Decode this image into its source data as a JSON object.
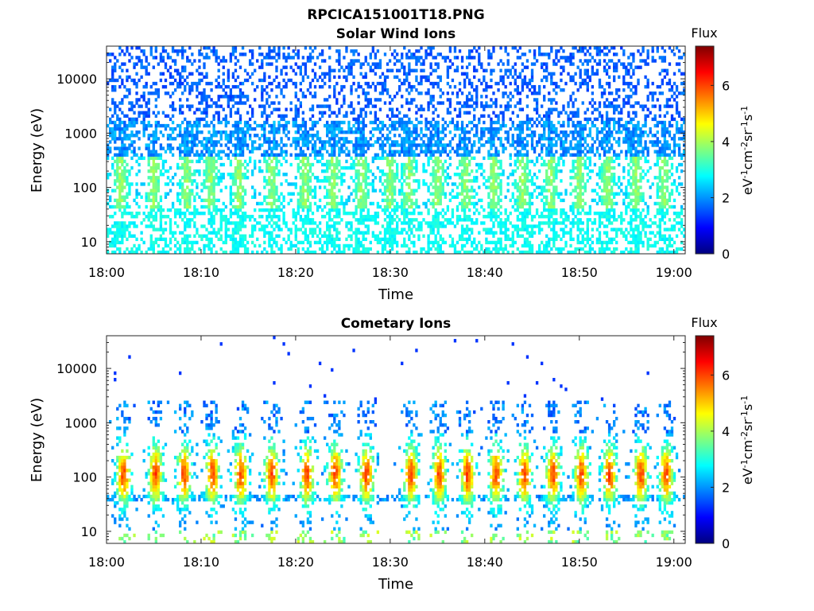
{
  "figure": {
    "title": "RPCICA151001T18.PNG"
  },
  "colors": {
    "jet": [
      "#00007f",
      "#0000ff",
      "#007fff",
      "#00ffff",
      "#7fff7f",
      "#ffff00",
      "#ff7f00",
      "#ff0000",
      "#7f0000"
    ]
  },
  "chart_data": [
    {
      "type": "heatmap",
      "title": "Solar Wind Ions",
      "xlabel": "Time",
      "ylabel": "Energy (eV)",
      "x_ticks": [
        "18:00",
        "18:10",
        "18:20",
        "18:30",
        "18:40",
        "18:50",
        "19:00"
      ],
      "x_tick_minutes": [
        0,
        10,
        20,
        30,
        40,
        50,
        60
      ],
      "xlim_minutes": [
        0,
        61.2
      ],
      "y_ticks": [
        "10",
        "100",
        "1000",
        "10000"
      ],
      "y_tick_values": [
        10,
        100,
        1000,
        10000
      ],
      "ylim": [
        6,
        40000
      ],
      "yscale": "log",
      "colorbar": {
        "title": "Flux",
        "label": "eV-1cm-2sr-1s-1",
        "ticks": [
          "0",
          "2",
          "4",
          "6"
        ],
        "tick_values": [
          0,
          2,
          4,
          6
        ],
        "range": [
          0,
          7.4
        ]
      },
      "profile": "solar",
      "bursts_minutes": [
        1.5,
        5,
        8.5,
        11,
        14,
        17.5,
        21,
        24,
        27,
        30,
        32,
        35,
        38,
        41,
        44,
        47,
        50,
        53,
        56,
        59
      ]
    },
    {
      "type": "heatmap",
      "title": "Cometary Ions",
      "xlabel": "Time",
      "ylabel": "Energy (eV)",
      "x_ticks": [
        "18:00",
        "18:10",
        "18:20",
        "18:30",
        "18:40",
        "18:50",
        "19:00"
      ],
      "x_tick_minutes": [
        0,
        10,
        20,
        30,
        40,
        50,
        60
      ],
      "xlim_minutes": [
        0,
        61.2
      ],
      "y_ticks": [
        "10",
        "100",
        "1000",
        "10000"
      ],
      "y_tick_values": [
        10,
        100,
        1000,
        10000
      ],
      "ylim": [
        6,
        40000
      ],
      "yscale": "log",
      "colorbar": {
        "title": "Flux",
        "label": "eV-1cm-2sr-1s-1",
        "ticks": [
          "0",
          "2",
          "4",
          "6"
        ],
        "tick_values": [
          0,
          2,
          4,
          6
        ],
        "range": [
          0,
          7.4
        ]
      },
      "profile": "cometary",
      "bursts_minutes": [
        1.8,
        5.2,
        8.2,
        11.2,
        14.2,
        17.5,
        21.2,
        24.2,
        27.5,
        32.2,
        35.2,
        38.2,
        41.2,
        44.2,
        47.2,
        50.2,
        53.2,
        56.5,
        59.2
      ]
    }
  ]
}
